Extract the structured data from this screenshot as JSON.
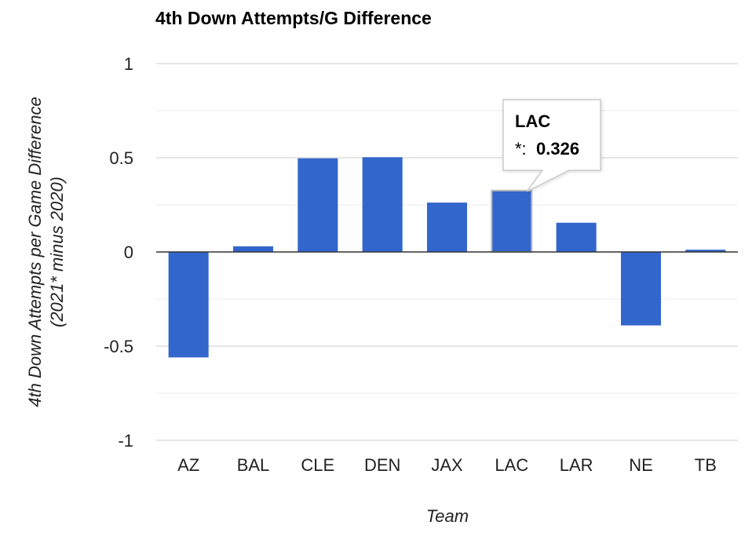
{
  "chart_data": {
    "type": "bar",
    "title": "4th Down Attempts/G Difference",
    "xlabel": "Team",
    "ylabel_line1": "4th Down Attempts per Game Difference",
    "ylabel_line2": "(2021* minus 2020)",
    "categories": [
      "AZ",
      "BAL",
      "CLE",
      "DEN",
      "JAX",
      "LAC",
      "LAR",
      "NE",
      "TB"
    ],
    "series": [
      {
        "values": [
          -0.56,
          0.03,
          0.497,
          0.503,
          0.262,
          0.326,
          0.155,
          -0.39,
          0.012
        ]
      }
    ],
    "ylim": [
      -1,
      1
    ],
    "yticks": [
      1,
      0.5,
      0,
      -0.5,
      -1
    ],
    "ytick_labels": [
      "1",
      "0.5",
      "0",
      "-0.5",
      "-1"
    ],
    "grid": true,
    "colors": {
      "bar": "#3366cc",
      "gridline": "#cccccc",
      "minor_gridline": "#ebebeb",
      "zero_line": "#333333"
    },
    "tooltip": {
      "category": "LAC",
      "series_label": "*:",
      "value_text": "0.326"
    }
  }
}
